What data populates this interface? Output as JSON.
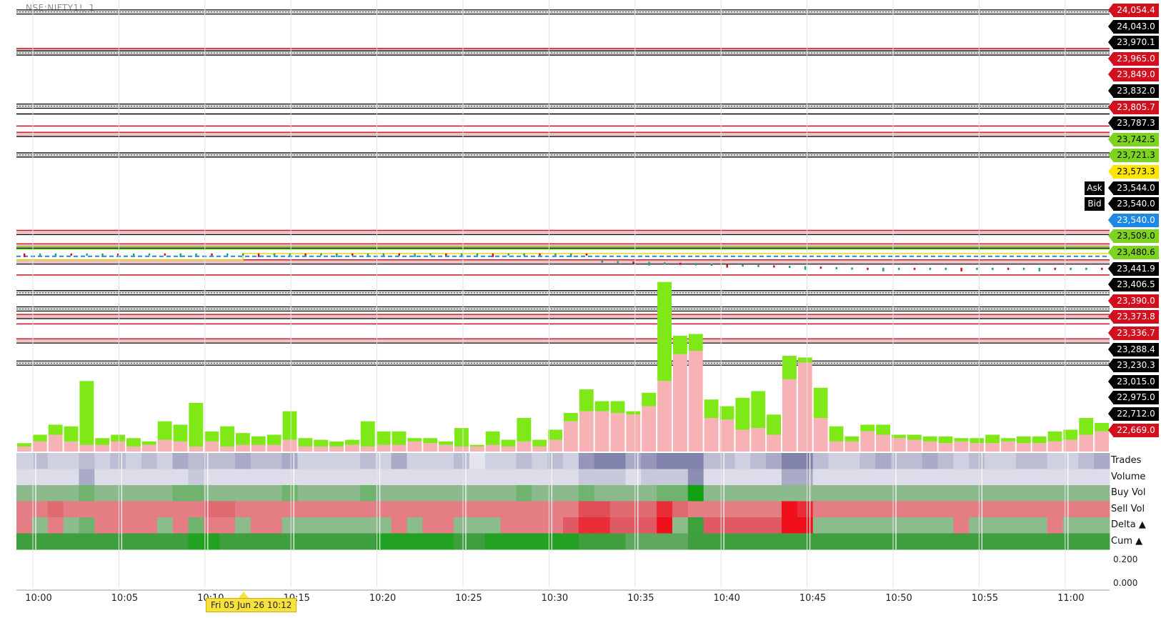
{
  "header": {
    "symbol_title": "NSE:NIFTY1!, 1"
  },
  "price_labels": [
    {
      "text": "24,054.4",
      "bg": "#d10f1f",
      "fg": "#ffffff"
    },
    {
      "text": "24,043.0",
      "bg": "#000000",
      "fg": "#ffffff"
    },
    {
      "text": "23,970.1",
      "bg": "#000000",
      "fg": "#ffffff"
    },
    {
      "text": "23,965.0",
      "bg": "#d10f1f",
      "fg": "#ffffff"
    },
    {
      "text": "23,849.0",
      "bg": "#d10f1f",
      "fg": "#ffffff"
    },
    {
      "text": "23,832.0",
      "bg": "#000000",
      "fg": "#ffffff"
    },
    {
      "text": "23,805.7",
      "bg": "#d10f1f",
      "fg": "#ffffff"
    },
    {
      "text": "23,787.3",
      "bg": "#000000",
      "fg": "#ffffff"
    },
    {
      "text": "23,742.5",
      "bg": "#7ed321",
      "fg": "#000000"
    },
    {
      "text": "23,721.3",
      "bg": "#7ed321",
      "fg": "#000000"
    },
    {
      "text": "23,573.3",
      "bg": "#ffe600",
      "fg": "#000000"
    },
    {
      "text": "23,544.0",
      "bg": "#000000",
      "fg": "#ffffff"
    },
    {
      "text": "23,540.0",
      "bg": "#000000",
      "fg": "#ffffff"
    },
    {
      "text": "23,540.0",
      "bg": "#1e88e5",
      "fg": "#ffffff"
    },
    {
      "text": "23,509.0",
      "bg": "#7ed321",
      "fg": "#000000"
    },
    {
      "text": "23,480.6",
      "bg": "#7ed321",
      "fg": "#000000"
    },
    {
      "text": "23,441.9",
      "bg": "#000000",
      "fg": "#ffffff"
    },
    {
      "text": "23,406.5",
      "bg": "#000000",
      "fg": "#ffffff"
    },
    {
      "text": "23,390.0",
      "bg": "#d10f1f",
      "fg": "#ffffff"
    },
    {
      "text": "23,373.8",
      "bg": "#d10f1f",
      "fg": "#ffffff"
    },
    {
      "text": "23,336.7",
      "bg": "#d10f1f",
      "fg": "#ffffff"
    },
    {
      "text": "23,288.4",
      "bg": "#000000",
      "fg": "#ffffff"
    },
    {
      "text": "23,230.3",
      "bg": "#000000",
      "fg": "#ffffff"
    },
    {
      "text": "23,015.0",
      "bg": "#000000",
      "fg": "#ffffff"
    },
    {
      "text": "22,975.0",
      "bg": "#000000",
      "fg": "#ffffff"
    },
    {
      "text": "22,712.0",
      "bg": "#000000",
      "fg": "#ffffff"
    },
    {
      "text": "22,669.0",
      "bg": "#d10f1f",
      "fg": "#ffffff"
    }
  ],
  "ask_label": "Ask",
  "bid_label": "Bid",
  "footprint_rows": [
    "Trades",
    "Volume",
    "Buy Vol",
    "Sell Vol",
    "Delta ▲",
    "Cum ▲"
  ],
  "oscillator_scale": [
    "0.200",
    "0.000"
  ],
  "crosshair_time": "Fri 05 Jun 26 10:12",
  "chart_data": {
    "type": "bar",
    "x_ticks": [
      "10:00",
      "10:05",
      "10:10",
      "10:15",
      "10:20",
      "10:25",
      "10:30",
      "10:35",
      "10:40",
      "10:45",
      "10:50",
      "10:55",
      "11:00"
    ],
    "levels": [
      {
        "price": 24054.4,
        "style": "black-band"
      },
      {
        "price": 23970.1,
        "style": "red-band"
      },
      {
        "price": 23965.0,
        "style": "black-band"
      },
      {
        "price": 23849.0,
        "style": "black-band"
      },
      {
        "price": 23832.0,
        "style": "black"
      },
      {
        "price": 23805.7,
        "style": "red"
      },
      {
        "price": 23787.3,
        "style": "red-band"
      },
      {
        "price": 23742.5,
        "style": "black-band"
      },
      {
        "price": 23573.3,
        "style": "red-band"
      },
      {
        "price": 23544.0,
        "style": "red-band"
      },
      {
        "price": 23540.0,
        "style": "green"
      },
      {
        "price": 23509.0,
        "style": "red-band"
      },
      {
        "price": 23480.6,
        "style": "red"
      },
      {
        "price": 23441.9,
        "style": "black-band"
      },
      {
        "price": 23406.5,
        "style": "black-band"
      },
      {
        "price": 23390.0,
        "style": "red-band"
      },
      {
        "price": 23373.8,
        "style": "red"
      },
      {
        "price": 23336.7,
        "style": "red-band"
      },
      {
        "price": 23288.4,
        "style": "black-band"
      }
    ],
    "series": [
      {
        "name": "Sell Vol",
        "color": "#f7b2b5",
        "values": [
          3,
          6,
          10,
          6,
          4,
          4,
          6,
          3,
          4,
          7,
          6,
          3,
          6,
          3,
          4,
          4,
          4,
          7,
          3,
          3,
          3,
          4,
          3,
          4,
          4,
          6,
          5,
          4,
          3,
          3,
          4,
          3,
          6,
          3,
          7,
          18,
          24,
          24,
          23,
          22,
          27,
          42,
          58,
          60,
          20,
          19,
          13,
          14,
          10,
          43,
          53,
          20,
          6,
          6,
          12,
          10,
          8,
          7,
          6,
          5,
          6,
          5,
          5,
          6,
          5,
          5,
          6,
          7,
          10,
          12
        ]
      },
      {
        "name": "Buy Vol",
        "color": "#7fe817",
        "values": [
          2,
          4,
          6,
          9,
          38,
          4,
          4,
          5,
          2,
          11,
          10,
          26,
          6,
          12,
          7,
          5,
          6,
          17,
          5,
          4,
          3,
          3,
          15,
          8,
          8,
          2,
          3,
          2,
          11,
          1,
          8,
          4,
          14,
          4,
          6,
          5,
          13,
          6,
          7,
          2,
          8,
          59,
          11,
          10,
          11,
          8,
          19,
          22,
          12,
          14,
          3,
          18,
          9,
          3,
          4,
          6,
          2,
          3,
          3,
          4,
          2,
          3,
          5,
          2,
          4,
          4,
          6,
          6,
          10,
          5
        ]
      }
    ],
    "footprint_matrix": {
      "trades": [
        2,
        3,
        2,
        2,
        3,
        2,
        3,
        2,
        3,
        2,
        4,
        3,
        3,
        3,
        4,
        3,
        3,
        4,
        2,
        2,
        2,
        2,
        3,
        2,
        4,
        2,
        2,
        2,
        3,
        1,
        2,
        2,
        3,
        2,
        3,
        2,
        5,
        6,
        6,
        4,
        5,
        6,
        6,
        6,
        3,
        3,
        2,
        3,
        4,
        6,
        6,
        3,
        2,
        2,
        3,
        4,
        3,
        3,
        4,
        3,
        2,
        3,
        2,
        2,
        3,
        3,
        2,
        2,
        3,
        4
      ],
      "volume": [
        1,
        1,
        1,
        1,
        3,
        1,
        1,
        1,
        1,
        1,
        1,
        2,
        1,
        1,
        1,
        1,
        1,
        1,
        1,
        1,
        1,
        1,
        1,
        1,
        1,
        1,
        1,
        1,
        1,
        1,
        1,
        1,
        1,
        1,
        1,
        1,
        2,
        2,
        2,
        1,
        2,
        2,
        2,
        4,
        1,
        1,
        1,
        1,
        1,
        3,
        3,
        1,
        1,
        1,
        1,
        1,
        1,
        1,
        1,
        1,
        1,
        1,
        1,
        1,
        1,
        1,
        1,
        1,
        1,
        1
      ],
      "buy": [
        2,
        2,
        2,
        2,
        3,
        2,
        2,
        2,
        2,
        2,
        3,
        3,
        2,
        2,
        2,
        2,
        2,
        3,
        2,
        2,
        2,
        2,
        3,
        2,
        2,
        2,
        2,
        2,
        2,
        2,
        2,
        2,
        3,
        2,
        2,
        2,
        3,
        2,
        2,
        2,
        2,
        3,
        3,
        6,
        2,
        2,
        2,
        2,
        2,
        2,
        2,
        2,
        2,
        2,
        2,
        2,
        2,
        2,
        2,
        2,
        2,
        2,
        2,
        2,
        2,
        2,
        2,
        2,
        2,
        2
      ],
      "sell": [
        2,
        2,
        3,
        2,
        2,
        2,
        2,
        2,
        2,
        2,
        2,
        2,
        3,
        3,
        2,
        2,
        2,
        2,
        2,
        2,
        2,
        2,
        2,
        2,
        2,
        2,
        2,
        2,
        2,
        2,
        2,
        2,
        2,
        2,
        2,
        2,
        4,
        4,
        3,
        3,
        3,
        5,
        3,
        2,
        2,
        2,
        2,
        2,
        2,
        6,
        5,
        2,
        2,
        2,
        2,
        2,
        2,
        2,
        2,
        2,
        2,
        2,
        2,
        2,
        2,
        2,
        2,
        2,
        2,
        2
      ],
      "delta": [
        -1,
        1,
        -1,
        1,
        2,
        -1,
        -1,
        -1,
        -1,
        1,
        -1,
        2,
        -1,
        -1,
        1,
        -1,
        -1,
        1,
        1,
        1,
        1,
        1,
        1,
        1,
        -1,
        1,
        -1,
        -1,
        1,
        1,
        1,
        -1,
        -1,
        -1,
        -1,
        -2,
        -3,
        -3,
        -2,
        -2,
        -2,
        -4,
        1,
        3,
        -2,
        -2,
        -2,
        -2,
        -2,
        -4,
        -4,
        1,
        1,
        1,
        1,
        1,
        1,
        1,
        1,
        1,
        -1,
        1,
        1,
        1,
        1,
        1,
        -1,
        1,
        1,
        1
      ],
      "cum": [
        2,
        2,
        2,
        2,
        2,
        2,
        2,
        2,
        2,
        2,
        2,
        3,
        3,
        2,
        2,
        2,
        2,
        2,
        2,
        2,
        2,
        2,
        2,
        3,
        3,
        3,
        3,
        3,
        2,
        2,
        3,
        3,
        3,
        3,
        3,
        3,
        2,
        2,
        2,
        1,
        1,
        1,
        1,
        2,
        2,
        2,
        2,
        2,
        2,
        2,
        2,
        2,
        2,
        2,
        2,
        2,
        2,
        2,
        2,
        2,
        2,
        2,
        2,
        2,
        2,
        2,
        2,
        2,
        2,
        2
      ]
    },
    "price_ticks_last": [
      23540,
      23545,
      23542,
      23538,
      23541,
      23543,
      23539,
      23540,
      23544,
      23547,
      23541,
      23539,
      23536,
      23538,
      23532,
      23529,
      23531,
      23528,
      23526,
      23527
    ]
  }
}
